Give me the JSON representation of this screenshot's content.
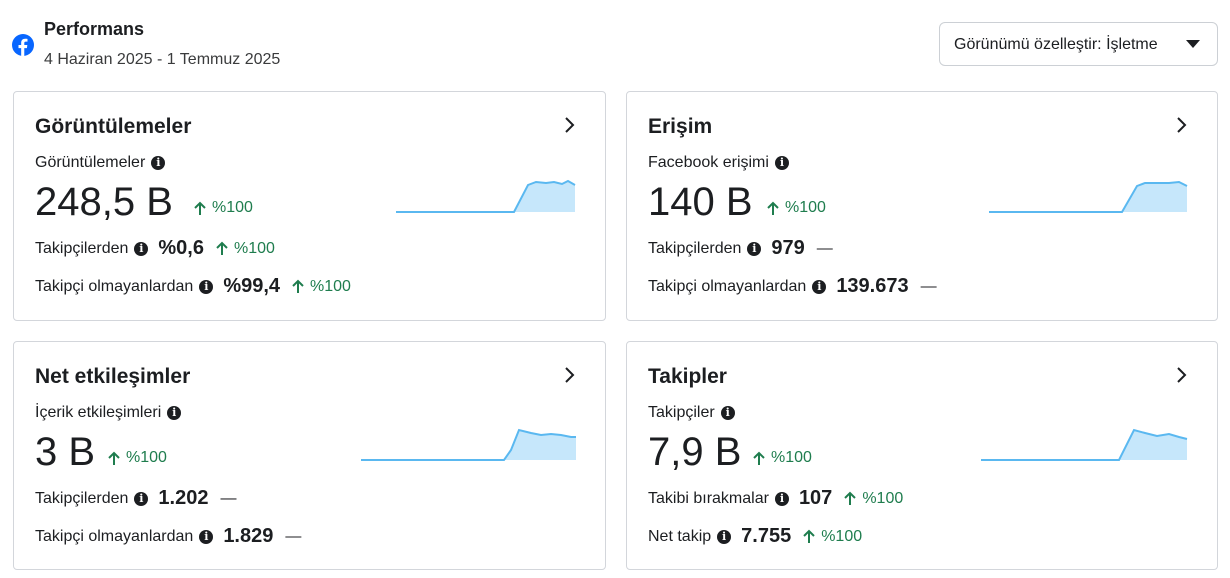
{
  "header": {
    "title": "Performans",
    "date_range": "4 Haziran 2025 - 1 Temmuz 2025",
    "customize_label": "Görünümü özelleştir: İşletme"
  },
  "icons": {
    "brand": "facebook-icon",
    "info": "info-icon",
    "chevron": "chevron-right-icon",
    "up": "arrow-up-icon"
  },
  "colors": {
    "facebook_blue": "#0866ff",
    "positive_green": "#1f7d4e",
    "sparkline_line": "#5ab8f0",
    "sparkline_fill": "#c6e7fb"
  },
  "cards": {
    "views": {
      "title": "Görüntülemeler",
      "metric_label": "Görüntülemeler",
      "value": "248,5 B",
      "delta": "%100",
      "rows": [
        {
          "label": "Takipçilerden",
          "value": "%0,6",
          "delta": "%100"
        },
        {
          "label": "Takipçi olmayanlardan",
          "value": "%99,4",
          "delta": "%100"
        }
      ]
    },
    "reach": {
      "title": "Erişim",
      "metric_label": "Facebook erişimi",
      "value": "140 B",
      "delta": "%100",
      "rows": [
        {
          "label": "Takipçilerden",
          "value": "979",
          "delta": "—"
        },
        {
          "label": "Takipçi olmayanlardan",
          "value": "139.673",
          "delta": "—"
        }
      ]
    },
    "engagement": {
      "title": "Net etkileşimler",
      "metric_label": "İçerik etkileşimleri",
      "value": "3 B",
      "delta": "%100",
      "rows": [
        {
          "label": "Takipçilerden",
          "value": "1.202",
          "delta": "—"
        },
        {
          "label": "Takipçi olmayanlardan",
          "value": "1.829",
          "delta": "—"
        }
      ]
    },
    "follows": {
      "title": "Takipler",
      "metric_label": "Takipçiler",
      "value": "7,9 B",
      "delta": "%100",
      "rows": [
        {
          "label": "Takibi bırakmalar",
          "value": "107",
          "delta": "%100"
        },
        {
          "label": "Net takip",
          "value": "7.755",
          "delta": "%100"
        }
      ]
    }
  }
}
